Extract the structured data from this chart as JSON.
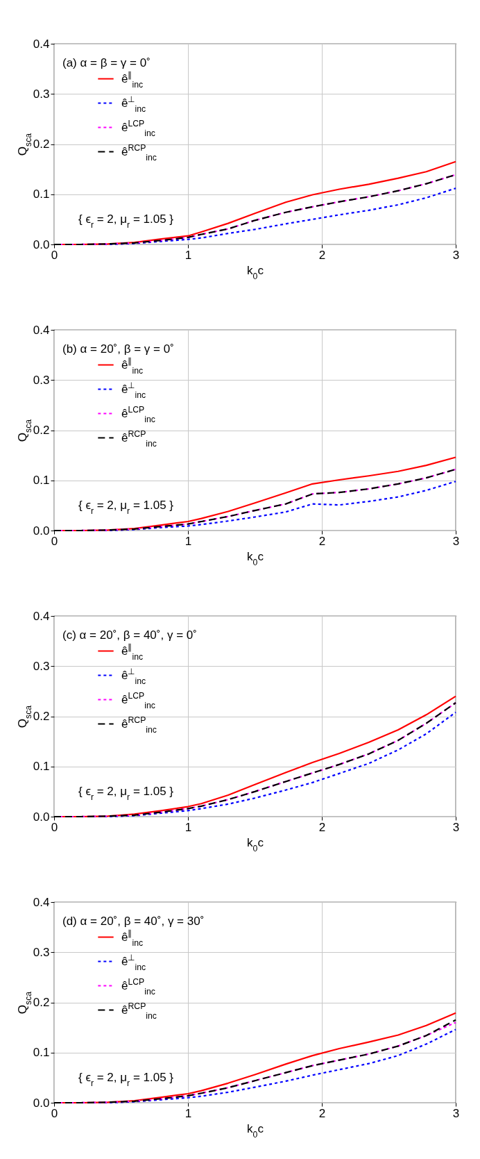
{
  "chart_data": [
    {
      "type": "line",
      "title": "(a) α = β = γ = 0˚",
      "xlabel": "k$_{0}$c",
      "ylabel": "Q$_{sca}$",
      "annotations": [
        "{ ϵ$_{r}$ = 2, μ$_{r}$ = 1.05 }"
      ],
      "x": [
        0,
        0.2,
        0.4,
        0.6,
        0.8,
        1.0,
        1.1,
        1.3,
        1.5,
        1.73,
        1.93,
        2.13,
        2.35,
        2.57,
        2.78,
        3.0
      ],
      "series": [
        {
          "name": "ê$^{∥}$$_{inc}$",
          "color": "#ff0000",
          "line_style": "solid",
          "values": [
            0,
            0,
            0.001,
            0.004,
            0.011,
            0.017,
            0.025,
            0.042,
            0.062,
            0.084,
            0.099,
            0.11,
            0.12,
            0.132,
            0.145,
            0.165
          ]
        },
        {
          "name": "ê$^{⊥}$$_{inc}$",
          "color": "#0000ff",
          "line_style": "dotted",
          "values": [
            0,
            0,
            0,
            0.002,
            0.006,
            0.01,
            0.013,
            0.022,
            0.03,
            0.041,
            0.05,
            0.059,
            0.068,
            0.079,
            0.093,
            0.112
          ]
        },
        {
          "name": "ê$^{LCP}$$_{inc}$",
          "color": "#ff00ff",
          "line_style": "dotted",
          "values": [
            0,
            0,
            0.001,
            0.003,
            0.008,
            0.014,
            0.02,
            0.031,
            0.048,
            0.064,
            0.075,
            0.085,
            0.095,
            0.107,
            0.121,
            0.139
          ]
        },
        {
          "name": "ê$^{RCP}$$_{inc}$",
          "color": "#000000",
          "line_style": "dashed",
          "values": [
            0,
            0,
            0.001,
            0.003,
            0.008,
            0.014,
            0.02,
            0.031,
            0.048,
            0.064,
            0.075,
            0.085,
            0.095,
            0.107,
            0.121,
            0.139
          ]
        }
      ],
      "xlim": [
        0,
        3
      ],
      "ylim": [
        0,
        0.4
      ],
      "xticks": [
        0,
        1,
        2,
        3
      ],
      "yticks": [
        {
          "value": 0,
          "label": "0.0"
        },
        {
          "value": 0.1,
          "label": "0.1"
        },
        {
          "value": 0.2,
          "label": "0.2"
        },
        {
          "value": 0.3,
          "label": "0.3"
        },
        {
          "value": 0.4,
          "label": "0.4"
        }
      ],
      "grid": true,
      "legend": "top left"
    },
    {
      "type": "line",
      "title": "(b) α = 20˚, β = γ = 0˚",
      "xlabel": "k$_{0}$c",
      "ylabel": "Q$_{sca}$",
      "annotations": [
        "{ ϵ$_{r}$ = 2, μ$_{r}$ = 1.05 }"
      ],
      "x": [
        0,
        0.2,
        0.4,
        0.6,
        0.8,
        1.0,
        1.1,
        1.3,
        1.5,
        1.73,
        1.93,
        2.13,
        2.35,
        2.57,
        2.78,
        3.0
      ],
      "series": [
        {
          "name": "ê$^{∥}$$_{inc}$",
          "color": "#ff0000",
          "line_style": "solid",
          "values": [
            0,
            0,
            0.001,
            0.004,
            0.011,
            0.018,
            0.024,
            0.038,
            0.055,
            0.075,
            0.093,
            0.101,
            0.109,
            0.118,
            0.13,
            0.146
          ]
        },
        {
          "name": "ê$^{⊥}$$_{inc}$",
          "color": "#0000ff",
          "line_style": "dotted",
          "values": [
            0,
            0,
            0,
            0.002,
            0.006,
            0.009,
            0.012,
            0.019,
            0.027,
            0.037,
            0.053,
            0.051,
            0.058,
            0.067,
            0.08,
            0.098
          ]
        },
        {
          "name": "ê$^{LCP}$$_{inc}$",
          "color": "#ff00ff",
          "line_style": "dotted",
          "values": [
            0,
            0,
            0.001,
            0.003,
            0.008,
            0.013,
            0.018,
            0.028,
            0.04,
            0.053,
            0.073,
            0.076,
            0.083,
            0.093,
            0.105,
            0.122
          ]
        },
        {
          "name": "ê$^{RCP}$$_{inc}$",
          "color": "#000000",
          "line_style": "dashed",
          "values": [
            0,
            0,
            0.001,
            0.003,
            0.008,
            0.013,
            0.018,
            0.028,
            0.04,
            0.053,
            0.073,
            0.076,
            0.083,
            0.093,
            0.105,
            0.122
          ]
        }
      ],
      "xlim": [
        0,
        3
      ],
      "ylim": [
        0,
        0.4
      ],
      "xticks": [
        0,
        1,
        2,
        3
      ],
      "yticks": [
        {
          "value": 0,
          "label": "0.0"
        },
        {
          "value": 0.1,
          "label": "0.1"
        },
        {
          "value": 0.2,
          "label": "0.2"
        },
        {
          "value": 0.3,
          "label": "0.3"
        },
        {
          "value": 0.4,
          "label": "0.4"
        }
      ],
      "grid": true,
      "legend": "top left"
    },
    {
      "type": "line",
      "title": "(c) α = 20˚, β = 40˚, γ = 0˚",
      "xlabel": "k$_{0}$c",
      "ylabel": "Q$_{sca}$",
      "annotations": [
        "{ ϵ$_{r}$ = 2, μ$_{r}$ = 1.05 }"
      ],
      "x": [
        0,
        0.2,
        0.4,
        0.6,
        0.8,
        1.0,
        1.1,
        1.3,
        1.5,
        1.73,
        1.93,
        2.13,
        2.35,
        2.57,
        2.78,
        3.0
      ],
      "series": [
        {
          "name": "ê$^{∥}$$_{inc}$",
          "color": "#ff0000",
          "line_style": "solid",
          "values": [
            0,
            0,
            0.001,
            0.005,
            0.012,
            0.02,
            0.026,
            0.043,
            0.064,
            0.088,
            0.108,
            0.126,
            0.148,
            0.173,
            0.203,
            0.24
          ]
        },
        {
          "name": "ê$^{⊥}$$_{inc}$",
          "color": "#0000ff",
          "line_style": "dotted",
          "values": [
            0,
            0,
            0,
            0.002,
            0.007,
            0.012,
            0.016,
            0.025,
            0.037,
            0.053,
            0.068,
            0.086,
            0.106,
            0.133,
            0.165,
            0.208
          ]
        },
        {
          "name": "ê$^{LCP}$$_{inc}$",
          "color": "#ff00ff",
          "line_style": "dotted",
          "values": [
            0,
            0,
            0.001,
            0.003,
            0.009,
            0.016,
            0.021,
            0.034,
            0.05,
            0.07,
            0.087,
            0.104,
            0.125,
            0.152,
            0.186,
            0.227
          ]
        },
        {
          "name": "ê$^{RCP}$$_{inc}$",
          "color": "#000000",
          "line_style": "dashed",
          "values": [
            0,
            0,
            0.001,
            0.003,
            0.009,
            0.016,
            0.021,
            0.034,
            0.05,
            0.07,
            0.087,
            0.104,
            0.125,
            0.152,
            0.186,
            0.227
          ]
        }
      ],
      "xlim": [
        0,
        3
      ],
      "ylim": [
        0,
        0.4
      ],
      "xticks": [
        0,
        1,
        2,
        3
      ],
      "yticks": [
        {
          "value": 0,
          "label": "0.0"
        },
        {
          "value": 0.1,
          "label": "0.1"
        },
        {
          "value": 0.2,
          "label": "0.2"
        },
        {
          "value": 0.3,
          "label": "0.3"
        },
        {
          "value": 0.4,
          "label": "0.4"
        }
      ],
      "grid": true,
      "legend": "top left"
    },
    {
      "type": "line",
      "title": "(d) α = 20˚, β = 40˚, γ = 30˚",
      "xlabel": "k$_{0}$c",
      "ylabel": "Q$_{sca}$",
      "annotations": [
        "{ ϵ$_{r}$ = 2, μ$_{r}$ = 1.05 }"
      ],
      "x": [
        0,
        0.2,
        0.4,
        0.6,
        0.8,
        1.0,
        1.1,
        1.3,
        1.5,
        1.73,
        1.93,
        2.13,
        2.35,
        2.57,
        2.78,
        3.0
      ],
      "series": [
        {
          "name": "ê$^{∥}$$_{inc}$",
          "color": "#ff0000",
          "line_style": "solid",
          "values": [
            0,
            0,
            0.001,
            0.004,
            0.011,
            0.018,
            0.024,
            0.039,
            0.056,
            0.077,
            0.094,
            0.108,
            0.121,
            0.135,
            0.154,
            0.179
          ]
        },
        {
          "name": "ê$^{⊥}$$_{inc}$",
          "color": "#0000ff",
          "line_style": "dotted",
          "values": [
            0,
            0,
            0,
            0.002,
            0.006,
            0.01,
            0.013,
            0.021,
            0.031,
            0.043,
            0.055,
            0.066,
            0.078,
            0.094,
            0.117,
            0.146
          ]
        },
        {
          "name": "ê$^{LCP}$$_{inc}$",
          "color": "#ff00ff",
          "line_style": "dotted",
          "values": [
            0,
            0,
            0.001,
            0.003,
            0.008,
            0.014,
            0.019,
            0.03,
            0.044,
            0.06,
            0.074,
            0.085,
            0.097,
            0.113,
            0.134,
            0.16
          ]
        },
        {
          "name": "ê$^{RCP}$$_{inc}$",
          "color": "#000000",
          "line_style": "dashed",
          "values": [
            0,
            0,
            0.001,
            0.003,
            0.008,
            0.014,
            0.019,
            0.03,
            0.044,
            0.06,
            0.074,
            0.085,
            0.097,
            0.113,
            0.134,
            0.165
          ]
        }
      ],
      "xlim": [
        0,
        3
      ],
      "ylim": [
        0,
        0.4
      ],
      "xticks": [
        0,
        1,
        2,
        3
      ],
      "yticks": [
        {
          "value": 0,
          "label": "0.0"
        },
        {
          "value": 0.1,
          "label": "0.1"
        },
        {
          "value": 0.2,
          "label": "0.2"
        },
        {
          "value": 0.3,
          "label": "0.3"
        },
        {
          "value": 0.4,
          "label": "0.4"
        }
      ],
      "grid": true,
      "legend": "top left"
    }
  ]
}
